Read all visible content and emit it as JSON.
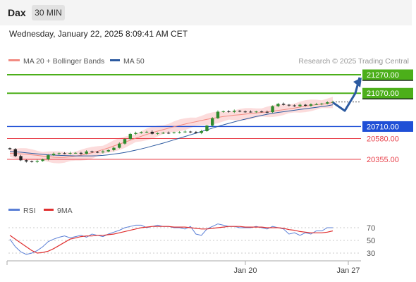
{
  "header": {
    "symbol": "Dax",
    "timeframe": "30 MIN"
  },
  "timestamp": "Wednesday, January 22, 2025 8:09:41 AM CET",
  "legend": {
    "bollinger": {
      "label": "MA 20 + Bollinger Bands",
      "color": "#f28b82"
    },
    "ma50": {
      "label": "MA 50",
      "color": "#2c5aa0"
    },
    "credit": "Research © 2025 Trading Central"
  },
  "colors": {
    "resistance": "#4caf1a",
    "pivot": "#1f4fd6",
    "support": "#e8404a",
    "arrow": "#2c5aa0",
    "candle_up": "#2e8b2e",
    "candle_down": "#222222",
    "rsi": "#5a7fd6",
    "rsi_ma": "#e03030"
  },
  "chart_data": [
    {
      "type": "line",
      "title": "",
      "series": [
        {
          "name": "MA 20 + Bollinger Bands",
          "role": "ma20",
          "values": [
            20420,
            20418,
            20414,
            20410,
            20404,
            20398,
            20390,
            20383,
            20378,
            20376,
            20377,
            20382,
            20390,
            20400,
            20412,
            20426,
            20442,
            20460,
            20478,
            20500,
            20520,
            20540,
            20562,
            20584,
            20604,
            20625,
            20643,
            20660,
            20676,
            20692,
            20708,
            20722,
            20736,
            20750,
            20762,
            20775,
            20788,
            20798,
            20808,
            20818,
            20825,
            20832,
            20838,
            20844,
            20850,
            20856,
            20862,
            20868,
            20876,
            20884,
            20892,
            20900,
            20910,
            20920,
            20930,
            20938,
            20946,
            20952,
            20960,
            20970
          ]
        },
        {
          "name": "MA 50",
          "role": "ma50",
          "values": [
            20440,
            20436,
            20432,
            20426,
            20420,
            20414,
            20408,
            20404,
            20401,
            20398,
            20396,
            20394,
            20392,
            20392,
            20392,
            20392,
            20394,
            20398,
            20404,
            20412,
            20420,
            20430,
            20442,
            20454,
            20468,
            20482,
            20498,
            20514,
            20530,
            20548,
            20566,
            20584,
            20602,
            20620,
            20638,
            20656,
            20674,
            20692,
            20710,
            20728,
            20744,
            20760,
            20776,
            20790,
            20804,
            20818,
            20830,
            20842,
            20852,
            20862,
            20870,
            20878,
            20886,
            20894,
            20902,
            20910,
            20918,
            20926,
            20934,
            20945
          ]
        },
        {
          "name": "Price",
          "role": "close",
          "values": [
            20465,
            20390,
            20345,
            20332,
            20328,
            20337,
            20355,
            20400,
            20415,
            20421,
            20419,
            20424,
            20425,
            20416,
            20440,
            20435,
            20430,
            20440,
            20455,
            20480,
            20525,
            20575,
            20630,
            20640,
            20650,
            20653,
            20632,
            20638,
            20642,
            20641,
            20646,
            20648,
            20655,
            20650,
            20640,
            20660,
            20720,
            20800,
            20870,
            20875,
            20868,
            20880,
            20872,
            20870,
            20868,
            20872,
            20868,
            20865,
            20930,
            20955,
            20945,
            20938,
            20930,
            20945,
            20935,
            20950,
            20952,
            20958,
            20972,
            20975
          ]
        }
      ],
      "annotations": {
        "levels": [
          {
            "value": 21270,
            "label": "21270.00",
            "kind": "resistance"
          },
          {
            "value": 21070,
            "label": "21070.00",
            "kind": "resistance"
          },
          {
            "value": 20710,
            "label": "20710.00",
            "kind": "pivot"
          },
          {
            "value": 20580,
            "label": "20580.00",
            "kind": "support"
          },
          {
            "value": 20355,
            "label": "20355.00",
            "kind": "support"
          }
        ],
        "scenario_arrow": [
          20970,
          20880,
          21070,
          21240
        ]
      }
    },
    {
      "type": "line",
      "title": "",
      "series": [
        {
          "name": "RSI",
          "role": "rsi",
          "values": [
            52,
            40,
            32,
            28,
            30,
            34,
            40,
            48,
            52,
            55,
            57,
            54,
            56,
            58,
            55,
            60,
            58,
            56,
            60,
            63,
            66,
            70,
            72,
            74,
            74,
            70,
            72,
            74,
            72,
            72,
            70,
            70,
            68,
            72,
            60,
            58,
            68,
            72,
            76,
            74,
            72,
            72,
            70,
            70,
            70,
            72,
            70,
            68,
            72,
            70,
            68,
            60,
            62,
            58,
            62,
            60,
            65,
            65,
            70,
            70
          ]
        },
        {
          "name": "9MA",
          "role": "rsi_ma",
          "values": [
            58,
            52,
            46,
            40,
            34,
            30,
            31,
            33,
            37,
            42,
            47,
            52,
            54,
            56,
            57,
            57,
            58,
            58,
            59,
            60,
            62,
            64,
            66,
            68,
            70,
            71,
            72,
            72,
            72,
            72,
            71,
            71,
            71,
            70,
            69,
            68,
            68,
            69,
            70,
            71,
            72,
            72,
            72,
            71,
            71,
            71,
            71,
            70,
            70,
            70,
            69,
            67,
            66,
            64,
            63,
            62,
            62,
            62,
            63,
            65
          ]
        }
      ],
      "yticks": [
        "70",
        "50",
        "30"
      ]
    }
  ],
  "x_axis": {
    "ticks": [
      "Jan 20",
      "Jan 27"
    ]
  }
}
